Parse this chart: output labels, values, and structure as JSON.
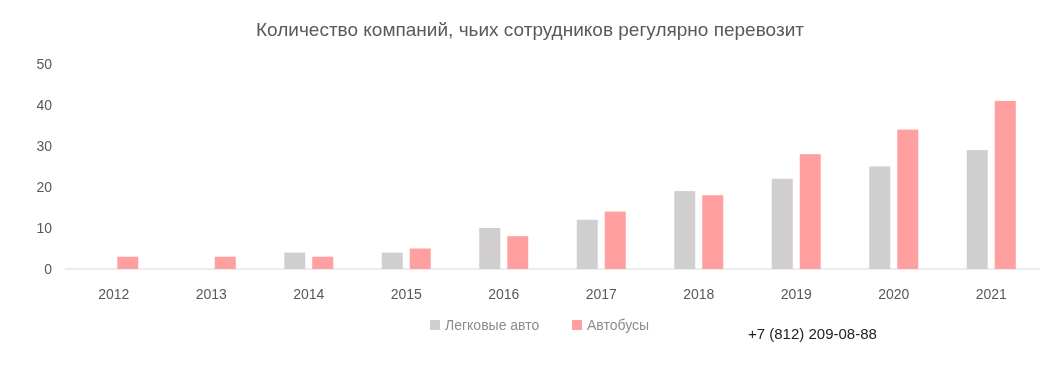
{
  "chart_data": {
    "type": "bar",
    "title": "Количество компаний, чьих сотрудников регулярно перевозит",
    "categories": [
      "2012",
      "2013",
      "2014",
      "2015",
      "2016",
      "2017",
      "2018",
      "2019",
      "2020",
      "2021"
    ],
    "series": [
      {
        "name": "Легковые авто",
        "color": "#d0cece",
        "values": [
          0,
          0,
          4,
          4,
          10,
          12,
          19,
          22,
          25,
          29
        ]
      },
      {
        "name": "Автобусы",
        "color": "#ff9f9f",
        "values": [
          3,
          3,
          3,
          5,
          8,
          14,
          18,
          28,
          34,
          41
        ]
      }
    ],
    "ylim": [
      0,
      50
    ],
    "yticks": [
      0,
      10,
      20,
      30,
      40,
      50
    ],
    "grid": false,
    "legend": "bottom",
    "annotations": [
      "+7 (812) 209-08-88"
    ]
  }
}
